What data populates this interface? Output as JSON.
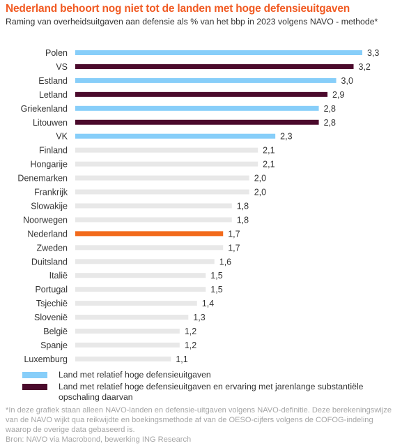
{
  "title": "Nederland behoort nog niet tot de landen met hoge defensieuitgaven",
  "subtitle": "Raming van overheidsuitgaven aan defensie als % van het bbp in 2023 volgens NAVO - methode*",
  "colors": {
    "high": "#87cef9",
    "high_experienced": "#4b0a2c",
    "netherlands": "#f26a1b",
    "other": "#e8e8e8",
    "title": "#f15a22"
  },
  "chart_data": {
    "type": "bar",
    "orientation": "horizontal",
    "categories": [
      "Polen",
      "VS",
      "Estland",
      "Letland",
      "Griekenland",
      "Litouwen",
      "VK",
      "Finland",
      "Hongarije",
      "Denemarken",
      "Frankrijk",
      "Slowakije",
      "Noorwegen",
      "Nederland",
      "Zweden",
      "Duitsland",
      "Italië",
      "Portugal",
      "Tsjechië",
      "Slovenië",
      "België",
      "Spanje",
      "Luxemburg"
    ],
    "values": [
      3.3,
      3.2,
      3.0,
      2.9,
      2.8,
      2.8,
      2.3,
      2.1,
      2.1,
      2.0,
      2.0,
      1.8,
      1.8,
      1.7,
      1.7,
      1.6,
      1.5,
      1.5,
      1.4,
      1.3,
      1.2,
      1.2,
      1.1
    ],
    "value_labels": [
      "3,3",
      "3,2",
      "3,0",
      "2,9",
      "2,8",
      "2,8",
      "2,3",
      "2,1",
      "2,1",
      "2,0",
      "2,0",
      "1,8",
      "1,8",
      "1,7",
      "1,7",
      "1,6",
      "1,5",
      "1,5",
      "1,4",
      "1,3",
      "1,2",
      "1,2",
      "1,1"
    ],
    "groups": [
      "high",
      "high_experienced",
      "high",
      "high_experienced",
      "high",
      "high_experienced",
      "high",
      "other",
      "other",
      "other",
      "other",
      "other",
      "other",
      "netherlands",
      "other",
      "other",
      "other",
      "other",
      "other",
      "other",
      "other",
      "other",
      "other"
    ],
    "xlim": [
      0,
      3.3
    ],
    "grid": false,
    "legend_position": "bottom-left"
  },
  "legend": [
    {
      "key": "high",
      "label": "Land met relatief hoge defensieuitgaven"
    },
    {
      "key": "high_experienced",
      "label": "Land met relatief hoge defensieuitgaven en ervaring met jarenlange substantiële opschaling daarvan"
    }
  ],
  "footnote": "*In deze grafiek staan alleen NAVO-landen en defensie-uitgaven volgens NAVO-definitie. Deze berekeningswijze van de NAVO wijkt qua reikwijdte en boekingsmethode af van de OESO-cijfers volgens de COFOG-indeling waarop de overige data gebaseerd is.",
  "source": "Bron: NAVO via Macrobond, bewerking ING Research"
}
